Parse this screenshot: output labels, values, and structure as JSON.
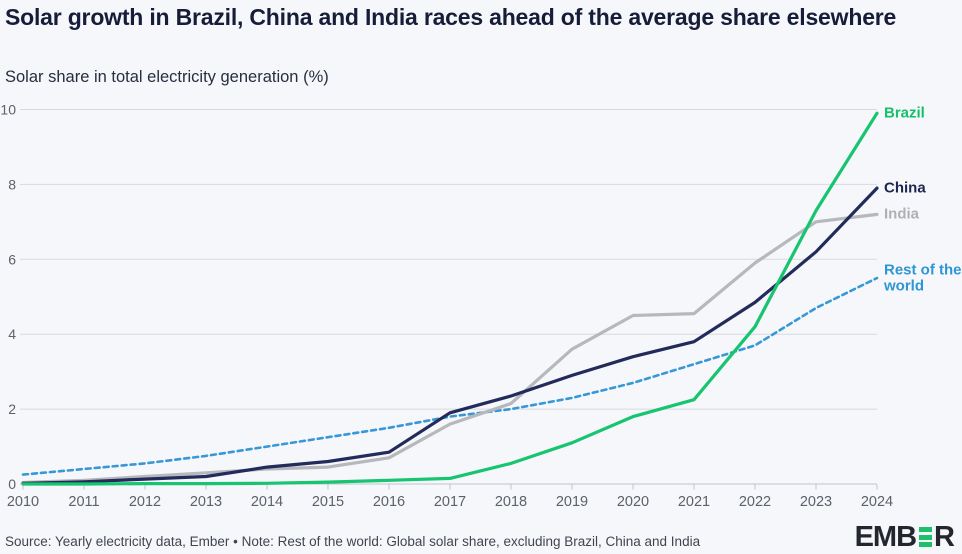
{
  "header": {
    "title": "Solar growth in Brazil, China and India races ahead of the average share elsewhere",
    "subtitle": "Solar share in total electricity generation (%)"
  },
  "chart_data": {
    "type": "line",
    "title": "Solar growth in Brazil, China and India races ahead of the average share elsewhere",
    "subtitle_unit": "%",
    "x": [
      2010,
      2011,
      2012,
      2013,
      2014,
      2015,
      2016,
      2017,
      2018,
      2019,
      2020,
      2021,
      2022,
      2023,
      2024
    ],
    "series": [
      {
        "name": "Brazil",
        "label_lines": [
          "Brazil"
        ],
        "color": "#17c46f",
        "label_color": "#14c169",
        "style": "solid",
        "values": [
          0.0,
          0.0,
          0.01,
          0.01,
          0.02,
          0.05,
          0.1,
          0.15,
          0.55,
          1.1,
          1.8,
          2.25,
          4.2,
          7.3,
          9.9
        ]
      },
      {
        "name": "China",
        "label_lines": [
          "China"
        ],
        "color": "#232b5a",
        "label_color": "#1d2552",
        "style": "solid",
        "values": [
          0.02,
          0.06,
          0.13,
          0.2,
          0.45,
          0.6,
          0.85,
          1.9,
          2.35,
          2.9,
          3.4,
          3.8,
          4.85,
          6.2,
          7.9
        ]
      },
      {
        "name": "India",
        "label_lines": [
          "India"
        ],
        "color": "#b7b8bc",
        "label_color": "#afb0b4",
        "style": "solid",
        "values": [
          0.04,
          0.1,
          0.2,
          0.3,
          0.4,
          0.45,
          0.7,
          1.6,
          2.15,
          3.6,
          4.5,
          4.55,
          5.9,
          7.0,
          7.2
        ]
      },
      {
        "name": "Rest of the world",
        "label_lines": [
          "Rest of the",
          "world"
        ],
        "color": "#3898d6",
        "label_color": "#2d96d6",
        "style": "dashed",
        "values": [
          0.25,
          0.4,
          0.55,
          0.75,
          1.0,
          1.25,
          1.5,
          1.8,
          2.0,
          2.3,
          2.7,
          3.2,
          3.7,
          4.7,
          5.5
        ]
      }
    ],
    "ylim": [
      0,
      10
    ],
    "yticks": [
      0,
      2,
      4,
      6,
      8,
      10
    ],
    "grid": "horizontal",
    "legend_position": "right-of-line-ends"
  },
  "colors": {
    "background": "#f6f7fa",
    "title_text": "#161d39",
    "gridline": "#d7d9e1",
    "axis": "#bfc3cc",
    "tick_label": "#5c616b",
    "brazil": "#17c46f",
    "china": "#232b5a",
    "india": "#b7b8bc",
    "rest_of_world": "#3898d6",
    "logo_dark": "#23262d",
    "logo_green": "#1fc06b"
  },
  "footer": {
    "source_note": "Source: Yearly electricity data, Ember • Note: Rest of the world: Global solar share, excluding Brazil, China and India",
    "logo_text_start": "EMB",
    "logo_text_end": "R"
  }
}
